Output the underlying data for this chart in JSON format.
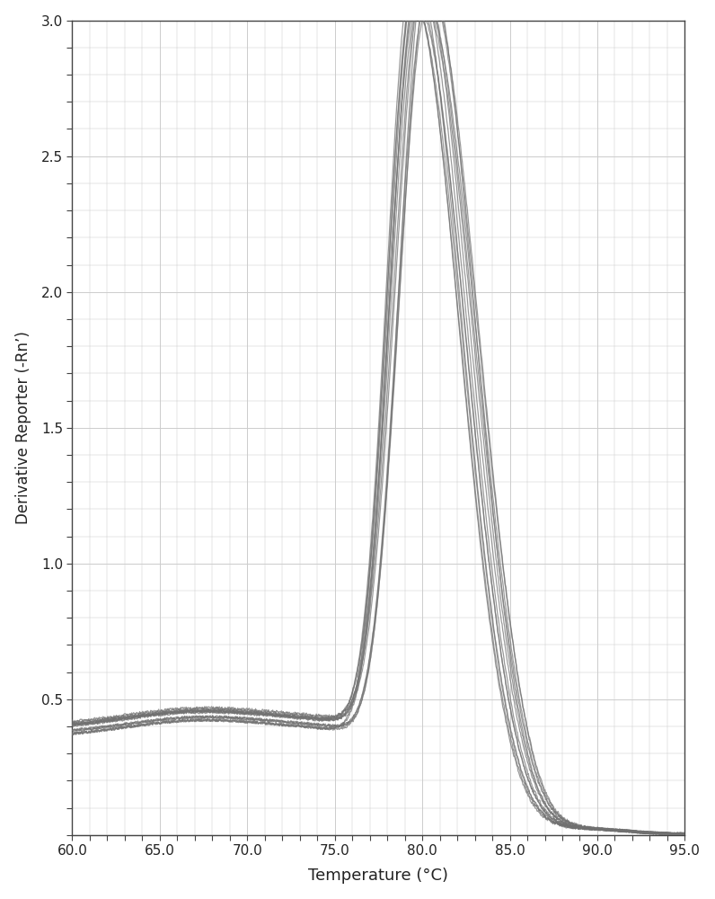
{
  "title": "",
  "xlabel": "Temperature (°C)",
  "ylabel": "Derivative Reporter (-Rn’)",
  "xlim": [
    60.0,
    95.0
  ],
  "ylim": [
    0.0,
    3.0
  ],
  "xticks": [
    60.0,
    65.0,
    70.0,
    75.0,
    80.0,
    85.0,
    90.0,
    95.0
  ],
  "yticks": [
    0.5,
    1.0,
    1.5,
    2.0,
    2.5,
    3.0
  ],
  "line_color": "#707070",
  "line_alpha": 0.7,
  "line_width": 0.9,
  "n_curves": 14,
  "background_color": "#ffffff",
  "grid_color": "#cccccc",
  "grid_linewidth": 0.5,
  "peak_temp": 79.8,
  "peak_value": 2.97
}
